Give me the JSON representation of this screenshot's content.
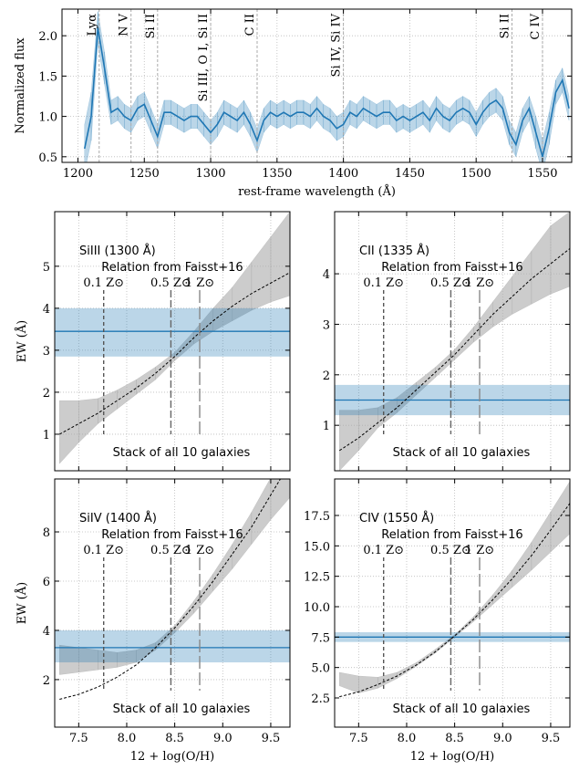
{
  "chart_data": [
    {
      "type": "line",
      "xlabel": "rest-frame wavelength (Å)",
      "ylabel": "Normalized flux",
      "xlim": [
        1188,
        1572
      ],
      "ylim": [
        0.43,
        2.33
      ],
      "grid": true,
      "color": "#1f77b4",
      "xticks": [
        1200,
        1250,
        1300,
        1350,
        1400,
        1450,
        1500,
        1550
      ],
      "yticks": [
        {
          "value": 0.5,
          "label": "0.5"
        },
        {
          "value": 1.0,
          "label": "1.0"
        },
        {
          "value": 1.5,
          "label": "1.5"
        },
        {
          "value": 2.0,
          "label": "2.0"
        }
      ],
      "x": [
        1205,
        1210,
        1215,
        1220,
        1225,
        1230,
        1235,
        1240,
        1245,
        1250,
        1255,
        1260,
        1265,
        1270,
        1275,
        1280,
        1285,
        1290,
        1295,
        1300,
        1305,
        1310,
        1315,
        1320,
        1325,
        1330,
        1335,
        1340,
        1345,
        1350,
        1355,
        1360,
        1365,
        1370,
        1375,
        1380,
        1385,
        1390,
        1395,
        1400,
        1405,
        1410,
        1415,
        1420,
        1425,
        1430,
        1435,
        1440,
        1445,
        1450,
        1455,
        1460,
        1465,
        1470,
        1475,
        1480,
        1485,
        1490,
        1495,
        1500,
        1505,
        1510,
        1515,
        1520,
        1525,
        1530,
        1535,
        1540,
        1545,
        1550,
        1555,
        1560,
        1565,
        1570
      ],
      "values": [
        0.6,
        1.0,
        2.1,
        1.6,
        1.05,
        1.1,
        1.0,
        0.95,
        1.1,
        1.15,
        0.95,
        0.75,
        1.05,
        1.05,
        1.0,
        0.95,
        1.0,
        1.0,
        0.9,
        0.8,
        0.9,
        1.05,
        1.0,
        0.95,
        1.05,
        0.9,
        0.7,
        0.95,
        1.05,
        1.0,
        1.05,
        1.0,
        1.05,
        1.05,
        1.0,
        1.1,
        1.0,
        0.95,
        0.85,
        0.9,
        1.05,
        1.0,
        1.1,
        1.05,
        1.0,
        1.05,
        1.05,
        0.95,
        1.0,
        0.95,
        1.0,
        1.05,
        0.95,
        1.1,
        1.0,
        0.95,
        1.05,
        1.1,
        1.05,
        0.9,
        1.05,
        1.15,
        1.2,
        1.1,
        0.8,
        0.65,
        0.95,
        1.1,
        0.8,
        0.5,
        0.85,
        1.3,
        1.45,
        1.1
      ],
      "errors": [
        0.3,
        0.3,
        0.2,
        0.2,
        0.15,
        0.15,
        0.15,
        0.15,
        0.15,
        0.15,
        0.15,
        0.15,
        0.15,
        0.15,
        0.15,
        0.15,
        0.15,
        0.15,
        0.15,
        0.15,
        0.15,
        0.15,
        0.15,
        0.15,
        0.15,
        0.15,
        0.15,
        0.15,
        0.15,
        0.15,
        0.15,
        0.15,
        0.15,
        0.15,
        0.15,
        0.15,
        0.15,
        0.15,
        0.15,
        0.15,
        0.15,
        0.15,
        0.15,
        0.15,
        0.15,
        0.15,
        0.15,
        0.15,
        0.15,
        0.15,
        0.15,
        0.15,
        0.15,
        0.15,
        0.15,
        0.15,
        0.15,
        0.15,
        0.15,
        0.15,
        0.15,
        0.15,
        0.15,
        0.15,
        0.15,
        0.15,
        0.15,
        0.15,
        0.2,
        0.2,
        0.2,
        0.15,
        0.15,
        0.15
      ],
      "line_labels": [
        {
          "label": "Lyα",
          "x": 1216
        },
        {
          "label": "N V",
          "x": 1240
        },
        {
          "label": "Si II",
          "x": 1260
        },
        {
          "label": "Si III, O I, Si II",
          "x": 1300
        },
        {
          "label": "C II",
          "x": 1335
        },
        {
          "label": "Si IV, Si IV",
          "x": 1400
        },
        {
          "label": "Si II",
          "x": 1527
        },
        {
          "label": "C IV",
          "x": 1550
        }
      ]
    },
    {
      "type": "relation",
      "title": "SiIII (1300 Å)",
      "relation_label": "Relation from Faisst+16",
      "stack_label": "Stack of all 10 galaxies",
      "ylabel": "EW (Å)",
      "xlim": [
        7.25,
        9.7
      ],
      "ylim": [
        0.13,
        6.3
      ],
      "grid": true,
      "x_tick_labels": false,
      "xticks": [
        7.5,
        8,
        8.5,
        9,
        9.5
      ],
      "yticks": [
        1,
        2,
        3,
        4,
        5
      ],
      "x": [
        7.3,
        7.5,
        7.7,
        7.9,
        8.1,
        8.3,
        8.5,
        8.7,
        8.9,
        9.1,
        9.3,
        9.5,
        9.7
      ],
      "relation": [
        1.0,
        1.25,
        1.5,
        1.8,
        2.1,
        2.45,
        2.85,
        3.3,
        3.7,
        4.05,
        4.35,
        4.6,
        4.85
      ],
      "relation_lower": [
        0.3,
        0.8,
        1.25,
        1.6,
        1.95,
        2.3,
        2.75,
        3.15,
        3.45,
        3.7,
        3.95,
        4.15,
        4.3
      ],
      "relation_upper": [
        1.8,
        1.8,
        1.85,
        2.05,
        2.3,
        2.6,
        2.95,
        3.45,
        4.0,
        4.5,
        5.1,
        5.7,
        6.3
      ],
      "measured": 3.45,
      "measured_low": 2.85,
      "measured_high": 4.0,
      "color": "#1f77b4",
      "relation_color": "#aaaaaa",
      "metallicity_lines": [
        {
          "x": 7.76,
          "label": "0.1 Z⊙"
        },
        {
          "x": 8.46,
          "label": "0.5 Z⊙"
        },
        {
          "x": 8.76,
          "label": "1 Z⊙"
        }
      ]
    },
    {
      "type": "relation",
      "title": "CII (1335 Å)",
      "relation_label": "Relation from Faisst+16",
      "stack_label": "Stack of all 10 galaxies",
      "xlim": [
        7.25,
        9.7
      ],
      "ylim": [
        0.1,
        5.23
      ],
      "grid": true,
      "x_tick_labels": false,
      "xticks": [
        7.5,
        8,
        8.5,
        9,
        9.5
      ],
      "yticks": [
        1,
        2,
        3,
        4
      ],
      "x": [
        7.3,
        7.5,
        7.7,
        7.9,
        8.1,
        8.3,
        8.5,
        8.7,
        8.9,
        9.1,
        9.3,
        9.5,
        9.7
      ],
      "relation": [
        0.5,
        0.75,
        1.05,
        1.35,
        1.7,
        2.05,
        2.4,
        2.8,
        3.2,
        3.55,
        3.9,
        4.2,
        4.5
      ],
      "relation_lower": [
        0.1,
        0.5,
        0.95,
        1.25,
        1.6,
        1.95,
        2.3,
        2.65,
        2.95,
        3.2,
        3.4,
        3.6,
        3.75
      ],
      "relation_upper": [
        1.3,
        1.3,
        1.35,
        1.55,
        1.85,
        2.15,
        2.5,
        2.95,
        3.45,
        3.95,
        4.45,
        4.95,
        5.23
      ],
      "measured": 1.5,
      "measured_low": 1.2,
      "measured_high": 1.8,
      "color": "#1f77b4",
      "relation_color": "#aaaaaa",
      "metallicity_lines": [
        {
          "x": 7.76,
          "label": "0.1 Z⊙"
        },
        {
          "x": 8.46,
          "label": "0.5 Z⊙"
        },
        {
          "x": 8.76,
          "label": "1 Z⊙"
        }
      ]
    },
    {
      "type": "relation",
      "title": "SiIV (1400 Å)",
      "relation_label": "Relation from Faisst+16",
      "stack_label": "Stack of all 10 galaxies",
      "ylabel": "EW (Å)",
      "xlabel": "12 + log(O/H)",
      "xlim": [
        7.25,
        9.7
      ],
      "ylim": [
        0.07,
        10.15
      ],
      "grid": true,
      "x_tick_labels": true,
      "xticks": [
        {
          "value": 7.5,
          "label": "7.5"
        },
        {
          "value": 8.0,
          "label": "8.0"
        },
        {
          "value": 8.5,
          "label": "8.5"
        },
        {
          "value": 9.0,
          "label": "9.0"
        },
        {
          "value": 9.5,
          "label": "9.5"
        }
      ],
      "yticks": [
        2,
        4,
        6,
        8
      ],
      "x": [
        7.3,
        7.5,
        7.7,
        7.9,
        8.1,
        8.3,
        8.5,
        8.7,
        8.9,
        9.1,
        9.3,
        9.5,
        9.7
      ],
      "relation": [
        1.2,
        1.4,
        1.7,
        2.1,
        2.6,
        3.3,
        4.1,
        5.0,
        6.0,
        7.1,
        8.2,
        9.5,
        10.8
      ],
      "relation_lower": [
        2.2,
        2.3,
        2.4,
        2.5,
        2.7,
        3.2,
        3.9,
        4.7,
        5.6,
        6.5,
        7.5,
        8.5,
        9.4
      ],
      "relation_upper": [
        3.4,
        3.3,
        3.2,
        3.1,
        3.2,
        3.5,
        4.2,
        5.2,
        6.3,
        7.5,
        8.8,
        10.2,
        11.5
      ],
      "measured": 3.3,
      "measured_low": 2.7,
      "measured_high": 4.0,
      "color": "#1f77b4",
      "relation_color": "#aaaaaa",
      "metallicity_lines": [
        {
          "x": 7.76,
          "label": "0.1 Z⊙"
        },
        {
          "x": 8.46,
          "label": "0.5 Z⊙"
        },
        {
          "x": 8.76,
          "label": "1 Z⊙"
        }
      ]
    },
    {
      "type": "relation",
      "title": "CIV (1550 Å)",
      "relation_label": "Relation from Faisst+16",
      "stack_label": "Stack of all 10 galaxies",
      "xlabel": "12 + log(O/H)",
      "xlim": [
        7.25,
        9.7
      ],
      "ylim": [
        0.1,
        20.5
      ],
      "grid": true,
      "x_tick_labels": true,
      "xticks": [
        {
          "value": 7.5,
          "label": "7.5"
        },
        {
          "value": 8.0,
          "label": "8.0"
        },
        {
          "value": 8.5,
          "label": "8.5"
        },
        {
          "value": 9.0,
          "label": "9.0"
        },
        {
          "value": 9.5,
          "label": "9.5"
        }
      ],
      "yticks": [
        {
          "value": 2.5,
          "label": "2.5"
        },
        {
          "value": 5.0,
          "label": "5.0"
        },
        {
          "value": 7.5,
          "label": "7.5"
        },
        {
          "value": 10.0,
          "label": "10.0"
        },
        {
          "value": 12.5,
          "label": "12.5"
        },
        {
          "value": 15.0,
          "label": "15.0"
        },
        {
          "value": 17.5,
          "label": "17.5"
        }
      ],
      "x": [
        7.3,
        7.5,
        7.7,
        7.9,
        8.1,
        8.3,
        8.5,
        8.7,
        8.9,
        9.1,
        9.3,
        9.5,
        9.7
      ],
      "relation": [
        2.6,
        3.0,
        3.6,
        4.3,
        5.2,
        6.3,
        7.6,
        9.0,
        10.6,
        12.3,
        14.2,
        16.3,
        18.5
      ],
      "relation_lower": [
        3.5,
        2.9,
        3.3,
        4.1,
        5.1,
        6.2,
        7.5,
        8.8,
        10.2,
        11.6,
        13.0,
        14.5,
        16.0
      ],
      "relation_upper": [
        4.6,
        4.3,
        4.2,
        4.6,
        5.4,
        6.5,
        7.7,
        9.2,
        11.0,
        13.0,
        15.3,
        17.8,
        20.3
      ],
      "measured": 7.5,
      "measured_low": 7.1,
      "measured_high": 7.9,
      "color": "#1f77b4",
      "relation_color": "#aaaaaa",
      "metallicity_lines": [
        {
          "x": 7.76,
          "label": "0.1 Z⊙"
        },
        {
          "x": 8.46,
          "label": "0.5 Z⊙"
        },
        {
          "x": 8.76,
          "label": "1 Z⊙"
        }
      ]
    }
  ]
}
